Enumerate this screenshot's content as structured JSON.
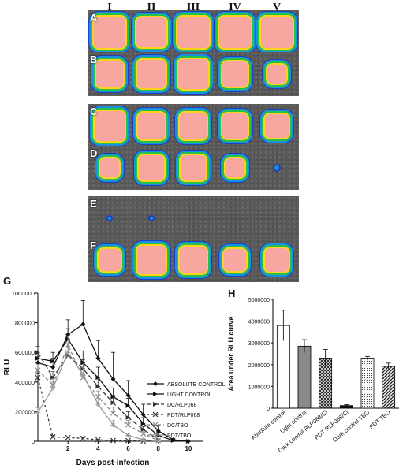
{
  "image_panel": {
    "columns": [
      "I",
      "II",
      "III",
      "IV",
      "V"
    ],
    "rows": [
      {
        "label": "A",
        "intensity": [
          1.0,
          0.95,
          1.0,
          1.0,
          1.0
        ]
      },
      {
        "label": "B",
        "intensity": [
          0.85,
          0.9,
          0.95,
          0.8,
          0.6
        ]
      },
      {
        "label": "C",
        "intensity": [
          0.95,
          0.85,
          0.85,
          0.8,
          0.75
        ]
      },
      {
        "label": "D",
        "intensity": [
          0.6,
          0.8,
          0.8,
          0.6,
          0.15
        ]
      },
      {
        "label": "E",
        "intensity": [
          0.05,
          0.05,
          0.0,
          0.0,
          0.0
        ]
      },
      {
        "label": "F",
        "intensity": [
          0.7,
          0.9,
          0.85,
          0.7,
          0.75
        ]
      }
    ]
  },
  "colors": {
    "hot": "#f7a6a0",
    "ring_yellow": "#ffd21e",
    "ring_green": "#25c24a",
    "ring_blue": "#1c8fe0",
    "background": "#5a5a5a"
  },
  "panel_labels": {
    "g": "G",
    "h": "H"
  },
  "chart_data": [
    {
      "type": "line",
      "ylabel": "RLU",
      "xlabel": "Days post-infection",
      "x_ticks": [
        2,
        4,
        6,
        8,
        10
      ],
      "y_ticks": [
        "0",
        "200000",
        "400000",
        "600000",
        "800000",
        "1000000"
      ],
      "ylim": [
        0,
        1000000
      ],
      "xlim": [
        0,
        11
      ],
      "series": [
        {
          "name": "ABSOLUTE CONTROL",
          "x": [
            0,
            1,
            2,
            3,
            4,
            5,
            6,
            7,
            8,
            9,
            10
          ],
          "y": [
            530000,
            500000,
            720000,
            790000,
            560000,
            420000,
            310000,
            180000,
            70000,
            10000,
            0
          ],
          "err": [
            40000,
            60000,
            100000,
            160000,
            120000,
            180000,
            100000,
            70000,
            40000,
            10000,
            0
          ],
          "color": "#111111",
          "marker": "diamond",
          "dash": ""
        },
        {
          "name": "LIGHT CONTROL",
          "x": [
            0,
            1,
            2,
            3,
            4,
            5,
            6,
            7,
            8,
            9,
            10
          ],
          "y": [
            560000,
            540000,
            690000,
            530000,
            430000,
            300000,
            240000,
            120000,
            40000,
            5000,
            0
          ],
          "err": [
            50000,
            60000,
            70000,
            80000,
            70000,
            60000,
            50000,
            40000,
            20000,
            5000,
            0
          ],
          "color": "#111111",
          "marker": "triangle-right",
          "dash": ""
        },
        {
          "name": "DC/RLP068",
          "x": [
            0,
            1,
            2,
            3,
            4,
            5,
            6,
            7,
            8
          ],
          "y": [
            600000,
            430000,
            580000,
            490000,
            370000,
            260000,
            160000,
            80000,
            10000
          ],
          "err": [
            40000,
            40000,
            60000,
            60000,
            50000,
            50000,
            40000,
            20000,
            5000
          ],
          "color": "#333333",
          "marker": "triangle-right",
          "dash": "6,3"
        },
        {
          "name": "PDT/RLP068",
          "x": [
            0,
            1,
            2,
            3,
            4,
            5,
            6,
            7
          ],
          "y": [
            430000,
            30000,
            25000,
            20000,
            10000,
            5000,
            5000,
            0
          ],
          "err": [
            30000,
            10000,
            5000,
            5000,
            3000,
            2000,
            2000,
            0
          ],
          "color": "#333333",
          "marker": "x",
          "dash": "3,3"
        },
        {
          "name": "DC/TBO",
          "x": [
            0,
            1,
            2,
            3,
            4,
            5,
            6,
            7,
            8
          ],
          "y": [
            480000,
            380000,
            650000,
            430000,
            300000,
            190000,
            110000,
            50000,
            5000
          ],
          "err": [
            40000,
            40000,
            60000,
            50000,
            40000,
            40000,
            30000,
            15000,
            3000
          ],
          "color": "#888888",
          "marker": "x",
          "dash": "4,3"
        },
        {
          "name": "PDT/TBO",
          "x": [
            0,
            1,
            2,
            3,
            4,
            5,
            6,
            7,
            8
          ],
          "y": [
            195000,
            360000,
            600000,
            450000,
            250000,
            110000,
            40000,
            10000,
            0
          ],
          "err": [
            30000,
            40000,
            60000,
            50000,
            40000,
            30000,
            15000,
            5000,
            0
          ],
          "color": "#999999",
          "marker": "star",
          "dash": ""
        }
      ]
    },
    {
      "type": "bar",
      "ylabel": "Area under RLU curve",
      "categories": [
        "Absolute control",
        "Light control",
        "Dark control RLP068/Cl",
        "PDT RLP068/Cl",
        "Dark control TBO",
        "PDT TBO"
      ],
      "values": [
        3800000,
        2850000,
        2300000,
        120000,
        2300000,
        1920000
      ],
      "errors": [
        700000,
        300000,
        400000,
        40000,
        80000,
        150000
      ],
      "fills": [
        "white",
        "gray",
        "crosshatch",
        "black",
        "dots",
        "hatch"
      ],
      "ylim": [
        0,
        5000000
      ],
      "y_ticks": [
        "0",
        "1000000",
        "2000000",
        "3000000",
        "4000000",
        "5000000"
      ]
    }
  ]
}
